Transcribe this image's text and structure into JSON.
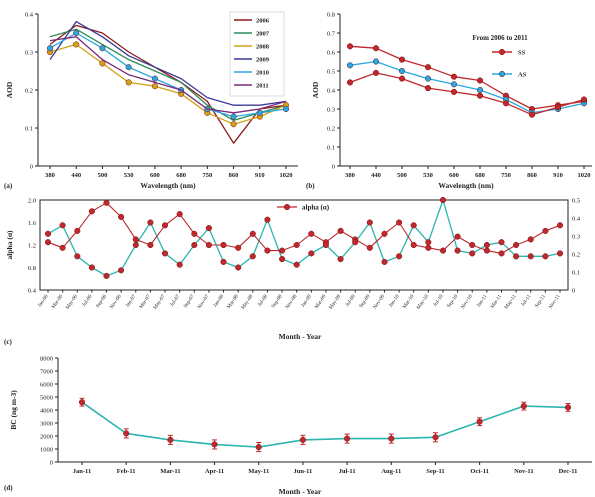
{
  "chart_data": [
    {
      "type": "line",
      "panel_label": "(a)",
      "xlabel": "Wavelength (nm)",
      "ylabel": "AOD",
      "categories": [
        "380",
        "440",
        "500",
        "530",
        "600",
        "680",
        "750",
        "860",
        "910",
        "1020"
      ],
      "ylim": [
        0,
        0.4
      ],
      "yticks": [
        "0",
        "0.1",
        "0.2",
        "0.3",
        "0.4"
      ],
      "legend_position": "top-right",
      "series": [
        {
          "name": "2006",
          "color": "#8b1a1a",
          "values": [
            0.32,
            0.37,
            0.35,
            0.3,
            0.26,
            0.22,
            0.17,
            0.06,
            0.15,
            0.16
          ]
        },
        {
          "name": "2007",
          "color": "#2e8b57",
          "values": [
            0.34,
            0.36,
            0.32,
            0.28,
            0.25,
            0.22,
            0.16,
            0.12,
            0.14,
            0.16
          ]
        },
        {
          "name": "2008",
          "color": "#d4a017",
          "values": [
            0.3,
            0.32,
            0.27,
            0.22,
            0.21,
            0.19,
            0.14,
            0.11,
            0.13,
            0.16
          ]
        },
        {
          "name": "2009",
          "color": "#3a3a9a",
          "values": [
            0.28,
            0.38,
            0.34,
            0.29,
            0.26,
            0.23,
            0.18,
            0.16,
            0.16,
            0.17
          ]
        },
        {
          "name": "2010",
          "color": "#29a8e0",
          "values": [
            0.31,
            0.35,
            0.31,
            0.26,
            0.23,
            0.2,
            0.15,
            0.13,
            0.14,
            0.15
          ]
        },
        {
          "name": "2011",
          "color": "#7a2a7a",
          "values": [
            0.33,
            0.34,
            0.28,
            0.24,
            0.22,
            0.2,
            0.15,
            0.14,
            0.15,
            0.17
          ]
        }
      ]
    },
    {
      "type": "line",
      "panel_label": "(b)",
      "xlabel": "Wavelength (nm)",
      "ylabel": "AOD",
      "title": "From 2006 to 2011",
      "categories": [
        "380",
        "440",
        "500",
        "530",
        "600",
        "680",
        "750",
        "860",
        "910",
        "1020"
      ],
      "ylim": [
        0,
        0.8
      ],
      "yticks": [
        "0",
        "0.1",
        "0.2",
        "0.3",
        "0.4",
        "0.5",
        "0.6",
        "0.7",
        "0.8"
      ],
      "legend_position": "top-right",
      "series": [
        {
          "name": "SS",
          "color": "#c0282d",
          "values": [
            0.63,
            0.62,
            0.56,
            0.52,
            0.47,
            0.45,
            0.37,
            0.3,
            0.32,
            0.34
          ]
        },
        {
          "name": "AS",
          "color": "#29a8e0",
          "values": [
            0.53,
            0.55,
            0.5,
            0.46,
            0.43,
            0.4,
            0.35,
            0.28,
            0.3,
            0.33
          ]
        },
        {
          "name": "",
          "color": "#c0282d",
          "values": [
            0.44,
            0.49,
            0.46,
            0.41,
            0.39,
            0.37,
            0.33,
            0.27,
            0.31,
            0.35
          ]
        }
      ]
    },
    {
      "type": "line",
      "panel_label": "(c)",
      "xlabel": "Month - Year",
      "ylabel": "alpha (α)",
      "ylim": [
        0.4,
        2.0
      ],
      "yticks": [
        "0.4",
        "0.8",
        "1.2",
        "1.6",
        "2.0"
      ],
      "y2ticks": [
        "0",
        "0.1",
        "0.2",
        "0.3",
        "0.4",
        "0.5"
      ],
      "legend": [
        "alpha (α)"
      ],
      "x": [
        "Jan-06",
        "Mar-06",
        "May-06",
        "Jul-06",
        "Sep-06",
        "Nov-06",
        "Jan-07",
        "Mar-07",
        "May-07",
        "Jul-07",
        "Sep-07",
        "Nov-07",
        "Jan-08",
        "Mar-08",
        "May-08",
        "Jul-08",
        "Sep-08",
        "Nov-08",
        "Jan-09",
        "Mar-09",
        "May-09",
        "Jul-09",
        "Sep-09",
        "Nov-09",
        "Jan-10",
        "Mar-10",
        "May-10",
        "Jul-10",
        "Sep-10",
        "Nov-10",
        "Jan-11",
        "Mar-11",
        "May-11",
        "Jul-11",
        "Sep-11",
        "Nov-11"
      ],
      "series": [
        {
          "name": "alpha (α)",
          "color": "#c0282d",
          "values": [
            1.25,
            1.15,
            1.45,
            1.8,
            1.95,
            1.7,
            1.3,
            1.2,
            1.55,
            1.75,
            1.4,
            1.2,
            1.2,
            1.15,
            1.4,
            1.1,
            1.1,
            1.2,
            1.4,
            1.25,
            1.45,
            1.3,
            1.15,
            1.4,
            1.6,
            1.2,
            1.15,
            1.1,
            1.35,
            1.2,
            1.1,
            1.05,
            1.2,
            1.3,
            1.45,
            1.55
          ]
        },
        {
          "name": "",
          "color": "#2bb5b0",
          "values": [
            1.4,
            1.55,
            1.0,
            0.8,
            0.65,
            0.75,
            1.2,
            1.6,
            1.05,
            0.85,
            1.2,
            1.5,
            0.9,
            0.8,
            1.0,
            1.65,
            0.95,
            0.85,
            1.05,
            1.2,
            0.95,
            1.25,
            1.6,
            0.9,
            1.0,
            1.55,
            1.25,
            2.0,
            1.1,
            1.05,
            1.2,
            1.25,
            1.0,
            1.0,
            1.0,
            1.05
          ]
        }
      ]
    },
    {
      "type": "line",
      "panel_label": "(d)",
      "xlabel": "Month - Year",
      "ylabel": "BC (ng m-3)",
      "categories": [
        "Jan-11",
        "Feb-11",
        "Mar-11",
        "Apr-11",
        "May-11",
        "Jun-11",
        "Jul-11",
        "Aug-11",
        "Sep-11",
        "Oct-11",
        "Nov-11",
        "Dec-11"
      ],
      "values": [
        4600,
        2200,
        1700,
        1350,
        1150,
        1700,
        1800,
        1800,
        1900,
        3100,
        4300,
        4200
      ],
      "error": [
        300,
        350,
        350,
        350,
        350,
        350,
        350,
        350,
        350,
        300,
        300,
        300
      ],
      "line_color": "#2bb5b0",
      "marker_color": "#c0282d",
      "ylim": [
        0,
        8000
      ],
      "yticks": [
        "0",
        "1000",
        "2000",
        "3000",
        "4000",
        "5000",
        "6000",
        "7000",
        "8000"
      ]
    }
  ]
}
